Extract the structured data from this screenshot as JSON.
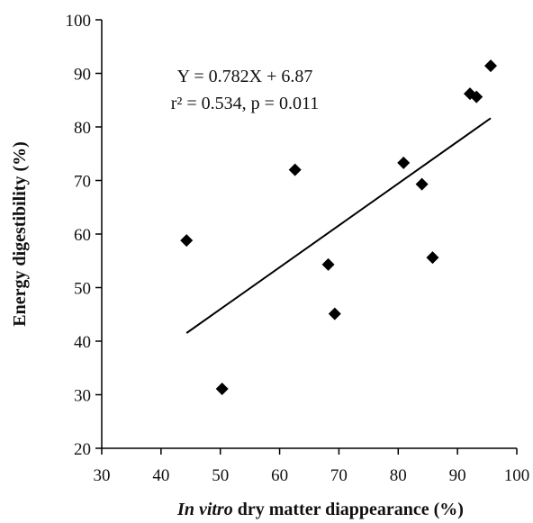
{
  "chart_data": {
    "type": "scatter",
    "title": "",
    "xlabel_italic": "In vitro",
    "xlabel_rest": " dry matter diappearance (%)",
    "ylabel": "Energy digestibility (%)",
    "xlim": [
      30,
      100
    ],
    "ylim": [
      20,
      100
    ],
    "xticks": [
      "30",
      "40",
      "50",
      "60",
      "70",
      "80",
      "90",
      "100"
    ],
    "yticks": [
      "20",
      "30",
      "40",
      "50",
      "60",
      "70",
      "80",
      "90",
      "100"
    ],
    "grid": false,
    "legend": "none",
    "marker": "diamond",
    "marker_color": "#000000",
    "points": [
      {
        "x": 44.3,
        "y": 58.8
      },
      {
        "x": 50.3,
        "y": 31.1
      },
      {
        "x": 62.6,
        "y": 72.0
      },
      {
        "x": 68.2,
        "y": 54.3
      },
      {
        "x": 69.3,
        "y": 45.1
      },
      {
        "x": 80.9,
        "y": 73.3
      },
      {
        "x": 84.0,
        "y": 69.3
      },
      {
        "x": 85.8,
        "y": 55.6
      },
      {
        "x": 92.1,
        "y": 86.2
      },
      {
        "x": 93.2,
        "y": 85.6
      },
      {
        "x": 95.6,
        "y": 91.4
      }
    ],
    "trendline": {
      "x": [
        44.3,
        95.6
      ],
      "equation": "Y = 0.782X + 6.87",
      "slope": 0.782,
      "intercept": 6.87
    },
    "annotation": {
      "equation": "Y = 0.782X + 6.87",
      "stats": "r² = 0.534, p = 0.011"
    }
  }
}
